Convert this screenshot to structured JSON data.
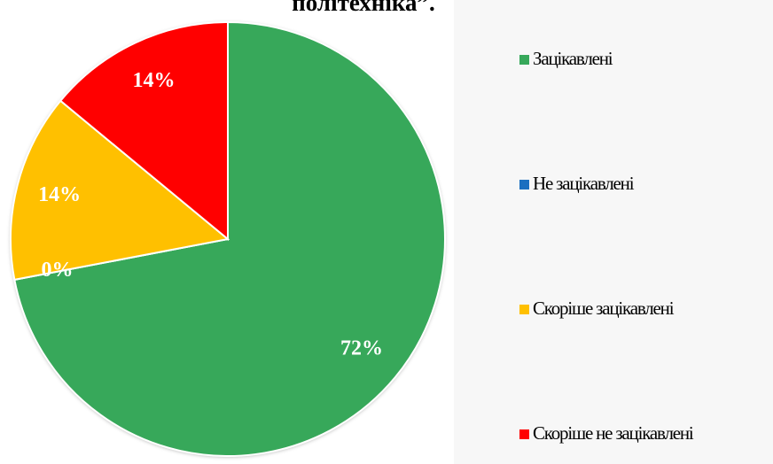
{
  "chart_data": {
    "type": "pie",
    "title": "політехніка”.",
    "categories": [
      "Зацікавлені",
      "Не зацікавлені",
      "Скоріше зацікавлені",
      "Скоріше не зацікавлені"
    ],
    "values": [
      72,
      0,
      14,
      14
    ],
    "value_labels": [
      "72%",
      "0%",
      "14%",
      "14%"
    ],
    "colors": [
      "#37a85a",
      "#1a6fc0",
      "#ffc000",
      "#ff0000"
    ],
    "legend": "right"
  }
}
